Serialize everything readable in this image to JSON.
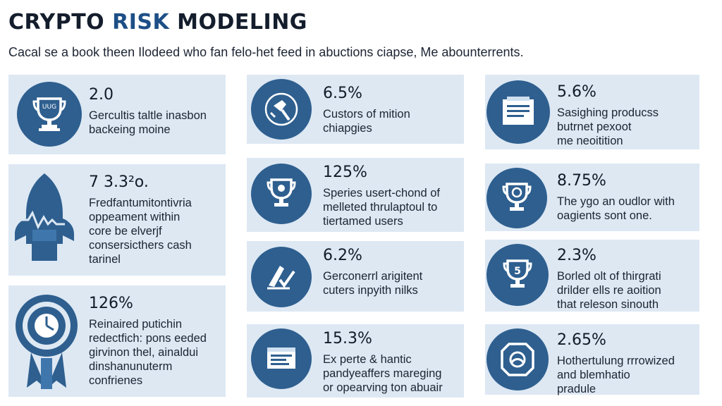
{
  "header": {
    "title_part1": "CRYPTO",
    "title_part2": " RISK ",
    "title_part3": "MODELING",
    "subtitle": "Cacal se a book theen Ilodeed who fan felo-het feed in abuctions ciapse, Me abounterrents."
  },
  "colors": {
    "card_bg": "#dde8f3",
    "icon_bg": "#2e5f8f",
    "accent": "#1d4f86"
  },
  "cards": [
    {
      "icon": "trophy-icon",
      "badge": "UUG",
      "value": "2.0",
      "lines": [
        "Gercultis taltle inasbon",
        "backeing moine"
      ]
    },
    {
      "icon": "rocket-icon",
      "value": "7 3.3²o.",
      "lines": [
        "Fredfantumitontivria",
        "oppeament within",
        "core be elverjf",
        "consersicthers cash",
        "tarinel"
      ]
    },
    {
      "icon": "award-ribbon-icon",
      "value": "126%",
      "lines": [
        "Reinaired putichin",
        "redectfich: pons eeded",
        "girvinon thel, ainaldui",
        "dinshanunuterm",
        "confrienes"
      ]
    },
    {
      "icon": "hammer-tool-icon",
      "value": "6.5%",
      "lines": [
        "Custors of mition",
        "chiapgies"
      ]
    },
    {
      "icon": "trophy-cup-icon",
      "value": "125%",
      "lines": [
        "Speries usert-chond of",
        "melleted thrulaptoul to",
        "tiertamed users"
      ]
    },
    {
      "icon": "pencil-check-icon",
      "value": "6.2%",
      "lines": [
        "Gerconerrl arigitent",
        "cuters inpyith nilks"
      ]
    },
    {
      "icon": "browser-window-icon",
      "value": "15.3%",
      "lines": [
        "Ex perte & hantic",
        "pandyeaffers mareging",
        "or opearving ton abuair"
      ]
    },
    {
      "icon": "document-stack-icon",
      "value": "5.6%",
      "lines": [
        "Sasighing producss",
        "butrnet pexoot",
        "me neoitition"
      ]
    },
    {
      "icon": "trophy-gear-icon",
      "value": "8.75%",
      "lines": [
        "The ygo an oudlor with",
        "oagients sont one."
      ]
    },
    {
      "icon": "trophy-five-icon",
      "badge": "5",
      "value": "2.3%",
      "lines": [
        "Borled olt of thirgrati",
        "drilder ells re aoition",
        "that releson sinouth"
      ]
    },
    {
      "icon": "shield-badge-icon",
      "value": "2.65%",
      "lines": [
        "Hothertulung rrrowized",
        "and blemhatio",
        "pradule"
      ]
    }
  ]
}
